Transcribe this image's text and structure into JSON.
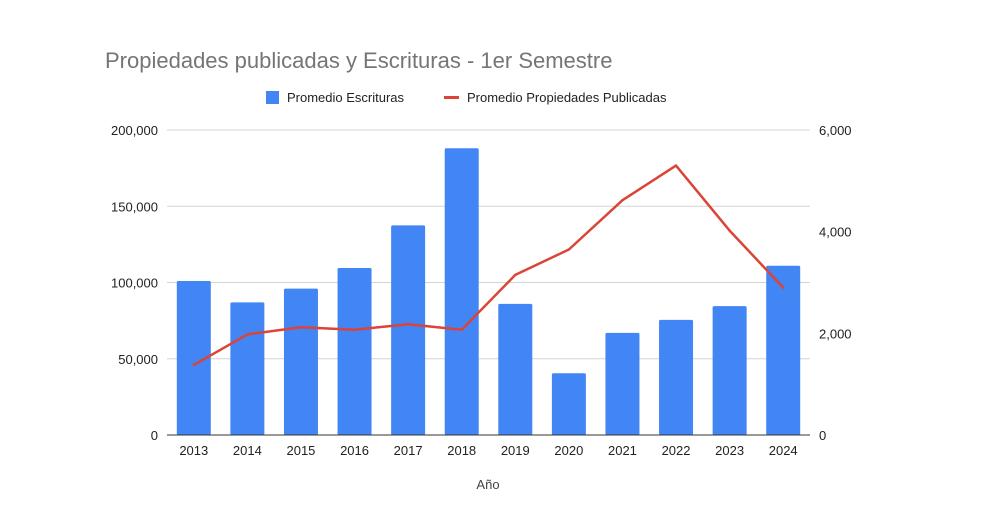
{
  "chart_data": {
    "type": "bar",
    "title": "Propiedades publicadas y Escrituras - 1er Semestre",
    "xlabel": "Año",
    "ylabel": "",
    "y2label": "",
    "categories": [
      "2013",
      "2014",
      "2015",
      "2016",
      "2017",
      "2018",
      "2019",
      "2020",
      "2021",
      "2022",
      "2023",
      "2024"
    ],
    "series": [
      {
        "name": "Promedio Escrituras",
        "type": "bar",
        "axis": "left",
        "color": "#4285f4",
        "values": [
          101000,
          87000,
          96000,
          109500,
          137500,
          188000,
          86000,
          40500,
          67000,
          75500,
          84500,
          111000
        ]
      },
      {
        "name": "Promedio Propiedades Publicadas",
        "type": "line",
        "axis": "right",
        "color": "#db4437",
        "values": [
          1380,
          1980,
          2120,
          2070,
          2180,
          2070,
          3150,
          3650,
          4620,
          5300,
          4020,
          2900
        ]
      }
    ],
    "ylim": [
      0,
      200000
    ],
    "y2lim": [
      0,
      6000
    ],
    "yticks": [
      "0",
      "50,000",
      "100,000",
      "150,000",
      "200,000"
    ],
    "y2ticks": [
      "0",
      "2,000",
      "4,000",
      "6,000"
    ],
    "grid": true,
    "legend_position": "top-center"
  }
}
